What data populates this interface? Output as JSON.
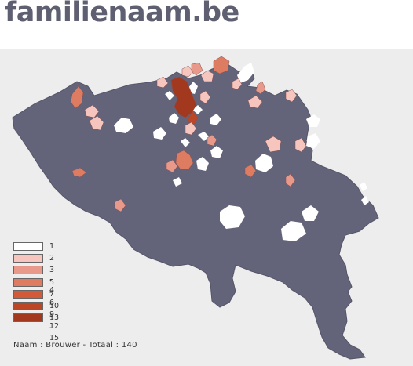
{
  "header": {
    "logo_text": "familienaam.be"
  },
  "legend": [
    {
      "label": "1",
      "color": "#ffffff"
    },
    {
      "label": "2",
      "color": "#f6c6be"
    },
    {
      "label": "3 - 4",
      "color": "#e8998a"
    },
    {
      "label": "5 - 6",
      "color": "#de7c62"
    },
    {
      "label": "7 - 9",
      "color": "#d25a38"
    },
    {
      "label": "10 - 12",
      "color": "#bb4727"
    },
    {
      "label": "13 - 15",
      "color": "#a2391e"
    }
  ],
  "caption": "Naam : Brouwer - Totaal : 140",
  "colors": {
    "country_fill": "#636379",
    "background": "#ededed",
    "header_background": "#ffffff",
    "logo": "#5f5f72"
  }
}
